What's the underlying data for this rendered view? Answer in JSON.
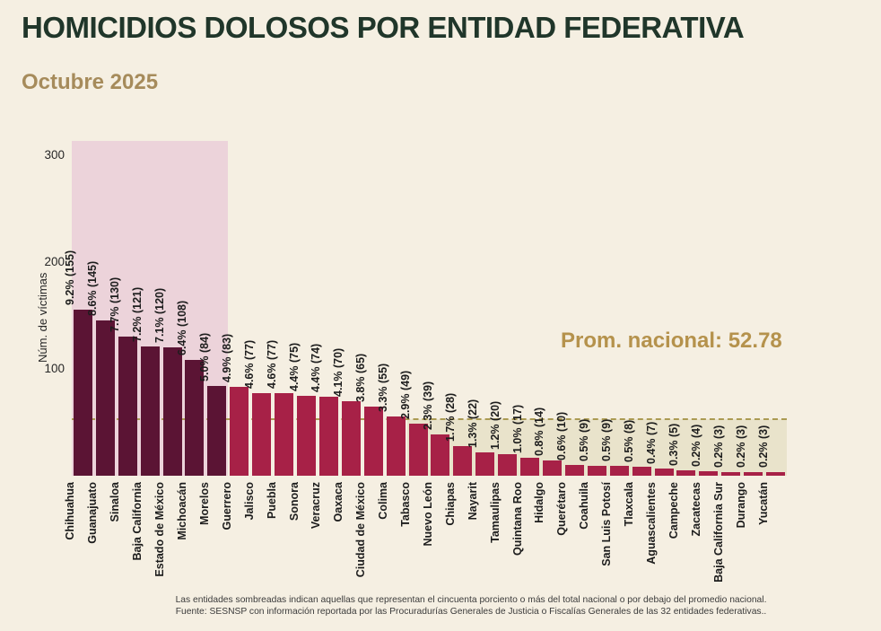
{
  "title": "HOMICIDIOS DOLOSOS POR ENTIDAD FEDERATIVA",
  "subtitle": "Octubre 2025",
  "annotation": {
    "label": "Prom. nacional: 52.78",
    "value": 52.78
  },
  "footer": {
    "line1": "Las entidades sombreadas indican aquellas que representan el cincuenta porciento o más del total nacional o por debajo del promedio nacional.",
    "line2": "Fuente: SESNSP con información reportada por las Procuradurías Generales de Justicia o Fiscalías Generales de las 32 entidades federativas.."
  },
  "colors": {
    "background": "#f5efe2",
    "title": "#20362a",
    "subtitle": "#a68b5b",
    "bar_dark": "#5b1434",
    "bar_light": "#a72147",
    "shade_pink": "#ecd3da",
    "shade_tan": "#e9e3cb",
    "avg_line": "#ab9a53",
    "annotation_text": "#b5924c",
    "label_text": "#1d1d1d"
  },
  "chart_data": {
    "type": "bar",
    "title": "Homicidios dolosos por entidad federativa, Octubre 2025",
    "xlabel": "",
    "ylabel": "Núm. de víctimas",
    "yticks": [
      100,
      200,
      300
    ],
    "ylim": [
      0,
      313
    ],
    "grid": false,
    "legend": false,
    "avg_line_value": 52.78,
    "shaded_top_group_count": 7,
    "below_average_start_index": 15,
    "categories": [
      "Chihuahua",
      "Guanajuato",
      "Sinaloa",
      "Baja California",
      "Estado de México",
      "Michoacán",
      "Morelos",
      "Guerrero",
      "Jalisco",
      "Puebla",
      "Sonora",
      "Veracruz",
      "Oaxaca",
      "Ciudad de México",
      "Colima",
      "Tabasco",
      "Nuevo León",
      "Chiapas",
      "Nayarit",
      "Tamaulipas",
      "Quintana Roo",
      "Hidalgo",
      "Querétaro",
      "Coahuila",
      "San Luis Potosí",
      "Tlaxcala",
      "Aguascalientes",
      "Campeche",
      "Zacatecas",
      "Baja California Sur",
      "Durango",
      "Yucatán"
    ],
    "values": [
      155,
      145,
      130,
      121,
      120,
      108,
      84,
      83,
      77,
      77,
      75,
      74,
      70,
      65,
      55,
      49,
      39,
      28,
      22,
      20,
      17,
      14,
      10,
      9,
      9,
      8,
      7,
      5,
      4,
      3,
      3,
      3
    ],
    "percents": [
      "9.2",
      "8.6",
      "7.7",
      "7.2",
      "7.1",
      "6.4",
      "5.0",
      "4.9",
      "4.6",
      "4.6",
      "4.4",
      "4.4",
      "4.1",
      "3.8",
      "3.3",
      "2.9",
      "2.3",
      "1.7",
      "1.3",
      "1.2",
      "1.0",
      "0.8",
      "0.6",
      "0.5",
      "0.5",
      "0.5",
      "0.4",
      "0.3",
      "0.2",
      "0.2",
      "0.2",
      "0.2"
    ]
  }
}
